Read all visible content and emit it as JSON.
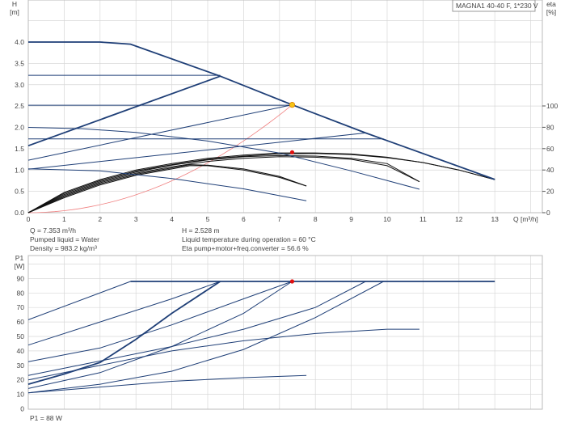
{
  "title_box": "MAGNA1 40-40 F, 1*230 V",
  "colors": {
    "curve": "#1f3f77",
    "eta": "#111111",
    "system": "#f08080",
    "duty_point": "#f5c518",
    "eta_point": "#e01010",
    "grid": "#d8d8d8"
  },
  "info": {
    "q": "Q = 7.353 m³/h",
    "liquid": "Pumped liquid = Water",
    "density": "Density = 983.2 kg/m³",
    "h": "H = 2.528 m",
    "temp": "Liquid temperature during operation = 60 °C",
    "eta": "Eta pump+motor+freq.converter = 56.6 %",
    "p1": "P1 = 88 W"
  },
  "chart_data": [
    {
      "type": "line",
      "ylabel": "H",
      "yunit": "[m]",
      "y2label": "eta",
      "y2unit": "[%]",
      "xlabel": "Q [m³/h]",
      "xlim": [
        0,
        14.2
      ],
      "ylim": [
        0,
        4.9
      ],
      "y2lim": [
        0,
        100
      ],
      "xticks": [
        "0",
        "1",
        "2",
        "3",
        "4",
        "5",
        "6",
        "7",
        "8",
        "9",
        "10",
        "11",
        "12",
        "13"
      ],
      "yticks": [
        "0.0",
        "0.5",
        "1.0",
        "1.5",
        "2.0",
        "2.5",
        "3.0",
        "3.5",
        "4.0"
      ],
      "y2ticks": [
        "0",
        "20",
        "40",
        "60",
        "80",
        "100"
      ],
      "grid": true,
      "head_series": [
        {
          "style": "max",
          "points": [
            [
              0,
              4.0
            ],
            [
              2,
              4.0
            ],
            [
              2.85,
              3.95
            ],
            [
              5.35,
              3.2
            ],
            [
              7.353,
              2.528
            ],
            [
              9.4,
              1.87
            ],
            [
              9.9,
              1.72
            ],
            [
              13,
              0.78
            ]
          ]
        },
        {
          "style": "thin",
          "points": [
            [
              0,
              3.22
            ],
            [
              5.35,
              3.22
            ]
          ]
        },
        {
          "style": "thin",
          "points": [
            [
              0,
              2.52
            ],
            [
              7.353,
              2.52
            ]
          ]
        },
        {
          "style": "thin",
          "points": [
            [
              0,
              1.73
            ],
            [
              9.9,
              1.73
            ]
          ]
        },
        {
          "style": "thick",
          "points": [
            [
              0,
              1.57
            ],
            [
              5.35,
              3.2
            ]
          ]
        },
        {
          "style": "thin",
          "points": [
            [
              0,
              1.23
            ],
            [
              7.353,
              2.528
            ]
          ]
        },
        {
          "style": "thin",
          "points": [
            [
              0,
              1.02
            ],
            [
              9.4,
              1.87
            ]
          ]
        },
        {
          "style": "thin",
          "points": [
            [
              0,
              2.0
            ],
            [
              1.5,
              1.97
            ],
            [
              3,
              1.88
            ],
            [
              5,
              1.68
            ],
            [
              7,
              1.4
            ],
            [
              9,
              0.98
            ],
            [
              10.9,
              0.55
            ]
          ]
        },
        {
          "style": "thin",
          "points": [
            [
              0,
              1.03
            ],
            [
              2,
              0.98
            ],
            [
              4,
              0.8
            ],
            [
              6,
              0.56
            ],
            [
              7.75,
              0.28
            ]
          ]
        }
      ],
      "eta_series": [
        {
          "points": [
            [
              0,
              0
            ],
            [
              1,
              19
            ],
            [
              2,
              31
            ],
            [
              3,
              40
            ],
            [
              4,
              46
            ],
            [
              5,
              51
            ],
            [
              6,
              54
            ],
            [
              7,
              56
            ],
            [
              8,
              56
            ],
            [
              9,
              55
            ],
            [
              10,
              52
            ],
            [
              11,
              47
            ],
            [
              12,
              40
            ],
            [
              13,
              31
            ]
          ]
        },
        {
          "points": [
            [
              0,
              0
            ],
            [
              1,
              18
            ],
            [
              2,
              30
            ],
            [
              3,
              39
            ],
            [
              4,
              45
            ],
            [
              5,
              50
            ],
            [
              6,
              53
            ],
            [
              7,
              55
            ],
            [
              8,
              55.5
            ],
            [
              9,
              54.5
            ],
            [
              10,
              51.5
            ],
            [
              11,
              47
            ],
            [
              12,
              40
            ],
            [
              13,
              31
            ]
          ]
        },
        {
          "points": [
            [
              0,
              0
            ],
            [
              1,
              17
            ],
            [
              2,
              29
            ],
            [
              3,
              38
            ],
            [
              4,
              44.5
            ],
            [
              5,
              49.5
            ],
            [
              6,
              52.5
            ],
            [
              7,
              53.5
            ],
            [
              8,
              53
            ],
            [
              9,
              51
            ],
            [
              10,
              46
            ],
            [
              10.9,
              29
            ]
          ]
        },
        {
          "points": [
            [
              0,
              0
            ],
            [
              1,
              16
            ],
            [
              2,
              28
            ],
            [
              3,
              37
            ],
            [
              4,
              43
            ],
            [
              5,
              48
            ],
            [
              6,
              51
            ],
            [
              7,
              52.5
            ],
            [
              8,
              52
            ],
            [
              9,
              50
            ],
            [
              10,
              44
            ],
            [
              10.9,
              29
            ]
          ]
        },
        {
          "points": [
            [
              0,
              0
            ],
            [
              1,
              15
            ],
            [
              2,
              27
            ],
            [
              3,
              36
            ],
            [
              4,
              42
            ],
            [
              4.5,
              45
            ],
            [
              5,
              44.5
            ],
            [
              6,
              41
            ],
            [
              7,
              34
            ],
            [
              7.75,
              25
            ]
          ]
        },
        {
          "points": [
            [
              0,
              0
            ],
            [
              1,
              14
            ],
            [
              2,
              26
            ],
            [
              3,
              35
            ],
            [
              4,
              41
            ],
            [
              4.5,
              44
            ],
            [
              5,
              44
            ],
            [
              6,
              40
            ],
            [
              7,
              33
            ],
            [
              7.75,
              25
            ]
          ]
        }
      ],
      "system_curve": {
        "q": 7.353,
        "h": 2.528
      },
      "duty_point": {
        "q": 7.353,
        "h": 2.528
      },
      "eta_point": {
        "q": 7.353,
        "eta": 56.6
      }
    },
    {
      "type": "line",
      "ylabel": "P1",
      "yunit": "[W]",
      "xlim": [
        0,
        14.2
      ],
      "ylim": [
        0,
        100
      ],
      "yticks": [
        "0",
        "10",
        "20",
        "30",
        "40",
        "50",
        "60",
        "70",
        "80",
        "90"
      ],
      "grid": true,
      "series": [
        {
          "style": "max",
          "points": [
            [
              2.85,
              88
            ],
            [
              13,
              88
            ]
          ]
        },
        {
          "style": "thin",
          "points": [
            [
              0,
              61.5
            ],
            [
              2.85,
              88
            ]
          ]
        },
        {
          "style": "thin",
          "points": [
            [
              0,
              44
            ],
            [
              2,
              60
            ],
            [
              4,
              76
            ],
            [
              5.35,
              88
            ]
          ]
        },
        {
          "style": "thick",
          "points": [
            [
              0,
              17
            ],
            [
              1,
              24
            ],
            [
              2,
              32
            ],
            [
              3,
              48
            ],
            [
              4,
              66
            ],
            [
              5.35,
              88
            ]
          ]
        },
        {
          "style": "thin",
          "points": [
            [
              0,
              32.5
            ],
            [
              2,
              42
            ],
            [
              4,
              58
            ],
            [
              6,
              76
            ],
            [
              7.353,
              88
            ]
          ]
        },
        {
          "style": "thin",
          "points": [
            [
              0,
              14
            ],
            [
              2,
              25
            ],
            [
              4,
              43
            ],
            [
              6,
              66
            ],
            [
              7.353,
              88
            ]
          ]
        },
        {
          "style": "thin",
          "points": [
            [
              0,
              23
            ],
            [
              2,
              33
            ],
            [
              4,
              43
            ],
            [
              6,
              55
            ],
            [
              8,
              70
            ],
            [
              9.4,
              88
            ]
          ]
        },
        {
          "style": "thin",
          "points": [
            [
              0,
              11
            ],
            [
              2,
              17
            ],
            [
              4,
              26
            ],
            [
              6,
              41
            ],
            [
              8,
              63
            ],
            [
              9.9,
              88
            ]
          ]
        },
        {
          "style": "thin",
          "points": [
            [
              0,
              20
            ],
            [
              2,
              30
            ],
            [
              4,
              40
            ],
            [
              6,
              47
            ],
            [
              8,
              52
            ],
            [
              10,
              55
            ],
            [
              10.9,
              55
            ]
          ]
        },
        {
          "style": "thin",
          "points": [
            [
              0,
              11
            ],
            [
              2,
              15
            ],
            [
              4,
              19
            ],
            [
              6,
              21.5
            ],
            [
              7.75,
              23
            ]
          ]
        }
      ],
      "point": {
        "q": 7.353,
        "p1": 88
      }
    }
  ]
}
